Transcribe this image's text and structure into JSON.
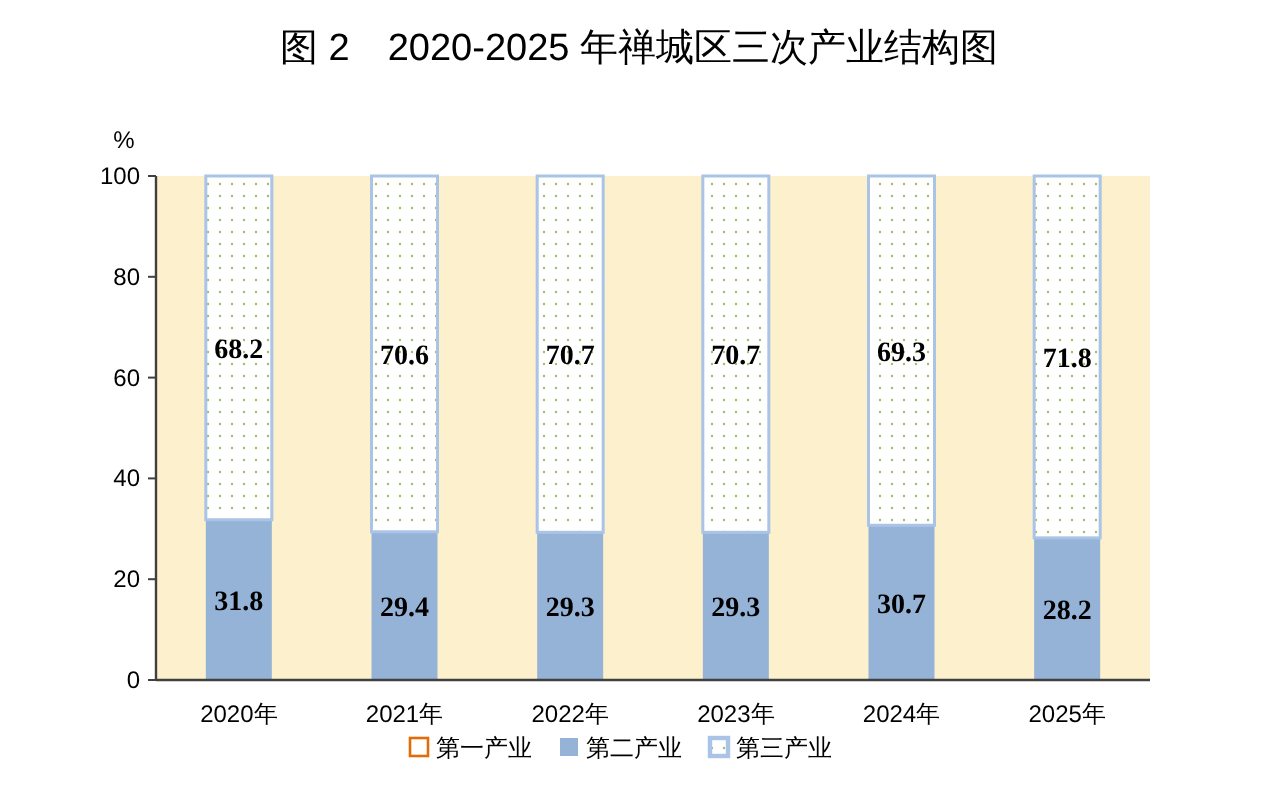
{
  "chart_data": {
    "type": "bar",
    "title": "图 2　2020-2025 年禅城区三次产业结构图",
    "ylabel": "%",
    "categories": [
      "2020年",
      "2021年",
      "2022年",
      "2023年",
      "2024年",
      "2025年"
    ],
    "stacked": true,
    "series": [
      {
        "name": "第一产业",
        "color": "#e36c09",
        "values": [
          0,
          0,
          0,
          0,
          0,
          0
        ]
      },
      {
        "name": "第二产业",
        "color": "#95b3d7",
        "values": [
          31.8,
          29.4,
          29.3,
          29.3,
          30.7,
          28.2
        ],
        "value_labels": [
          "31.8",
          "29.4",
          "29.3",
          "29.3",
          "30.7",
          "28.2"
        ]
      },
      {
        "name": "第三产业",
        "color": "#a9c4e6",
        "values": [
          68.2,
          70.6,
          70.7,
          70.7,
          69.3,
          71.8
        ],
        "value_labels": [
          "68.2",
          "70.6",
          "70.7",
          "70.7",
          "69.3",
          "71.8"
        ]
      }
    ],
    "ylim": [
      0,
      100
    ],
    "yticks": [
      0,
      20,
      40,
      60,
      80,
      100
    ],
    "grid": false,
    "legend": "bottom"
  }
}
